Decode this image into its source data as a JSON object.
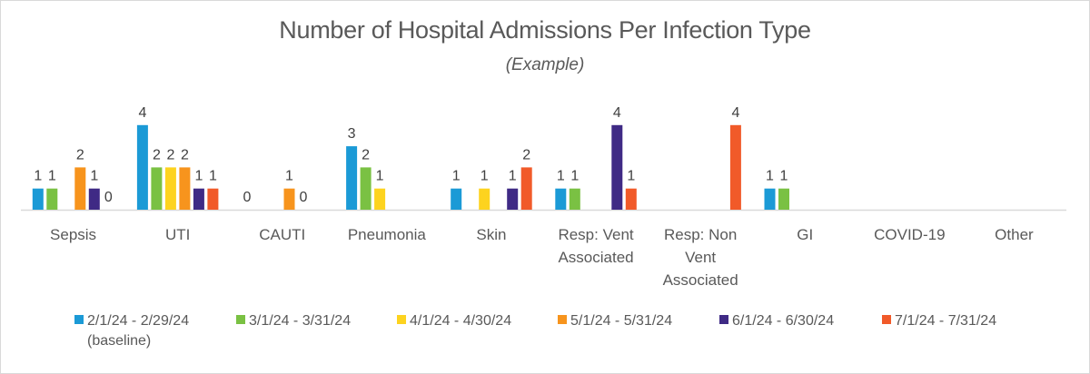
{
  "chart_data": {
    "type": "bar",
    "title": "Number of Hospital Admissions Per Infection Type",
    "subtitle": "(Example)",
    "xlabel": "",
    "ylabel": "",
    "ylim": [
      0,
      4
    ],
    "grid": false,
    "legend_position": "bottom",
    "categories": [
      [
        "Sepsis"
      ],
      [
        "UTI"
      ],
      [
        "CAUTI"
      ],
      [
        "Pneumonia"
      ],
      [
        "Skin"
      ],
      [
        "Resp: Vent",
        "Associated"
      ],
      [
        "Resp: Non",
        "Vent",
        "Associated"
      ],
      [
        "GI"
      ],
      [
        "COVID-19"
      ],
      [
        "Other"
      ]
    ],
    "series": [
      {
        "name": "2/1/24 - 2/29/24",
        "name_sub": "(baseline)",
        "color": "#1b9ad6",
        "values": [
          1,
          4,
          0,
          3,
          1,
          1,
          null,
          1,
          null,
          null
        ]
      },
      {
        "name": "3/1/24 - 3/31/24",
        "color": "#7ac143",
        "values": [
          1,
          2,
          null,
          2,
          null,
          1,
          null,
          1,
          null,
          null
        ]
      },
      {
        "name": "4/1/24 - 4/30/24",
        "color": "#fdd31f",
        "values": [
          null,
          2,
          null,
          1,
          1,
          null,
          null,
          null,
          null,
          null
        ]
      },
      {
        "name": "5/1/24 - 5/31/24",
        "color": "#f7941d",
        "values": [
          2,
          2,
          1,
          null,
          null,
          null,
          null,
          null,
          null,
          null
        ]
      },
      {
        "name": "6/1/24 - 6/30/24",
        "color": "#3f2a85",
        "values": [
          1,
          1,
          0,
          null,
          1,
          4,
          null,
          null,
          null,
          null
        ]
      },
      {
        "name": "7/1/24 - 7/31/24",
        "color": "#f15a29",
        "values": [
          0,
          1,
          null,
          null,
          2,
          1,
          4,
          null,
          null,
          null
        ]
      }
    ]
  }
}
